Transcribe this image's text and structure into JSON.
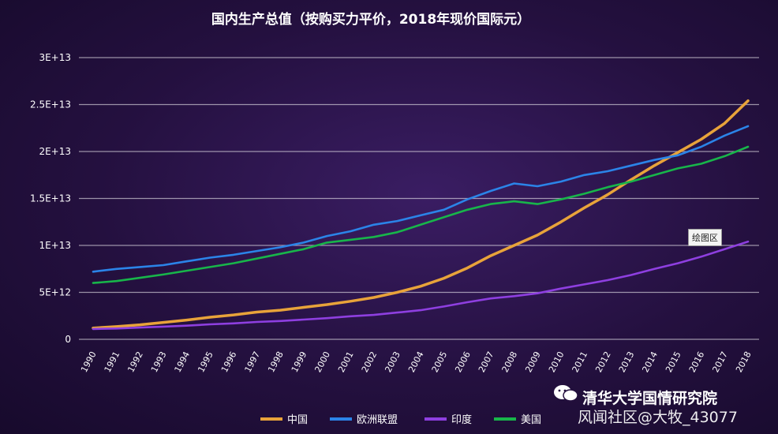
{
  "chart_data": {
    "type": "line",
    "title": "国内生产总值（按购买力平价，2018年现价国际元）",
    "xlabel": "",
    "ylabel": "",
    "ylim": [
      0,
      30000000000000
    ],
    "y_ticks": [
      0,
      5000000000000.0,
      10000000000000.0,
      15000000000000.0,
      20000000000000.0,
      25000000000000.0,
      30000000000000.0
    ],
    "y_tick_labels": [
      "0",
      "5E+12",
      "1E+13",
      "1.5E+13",
      "2E+13",
      "2.5E+13",
      "3E+13"
    ],
    "x": [
      "1990",
      "1991",
      "1992",
      "1993",
      "1994",
      "1995",
      "1996",
      "1997",
      "1998",
      "1999",
      "2000",
      "2001",
      "2002",
      "2003",
      "2004",
      "2005",
      "2006",
      "2007",
      "2008",
      "2009",
      "2010",
      "2011",
      "2012",
      "2013",
      "2014",
      "2015",
      "2016",
      "2017",
      "2018"
    ],
    "grid": true,
    "legend_position": "bottom",
    "series": [
      {
        "name": "中国",
        "color": "#e8a33a",
        "values": [
          1200000000000.0,
          1350000000000.0,
          1550000000000.0,
          1800000000000.0,
          2050000000000.0,
          2350000000000.0,
          2600000000000.0,
          2900000000000.0,
          3100000000000.0,
          3400000000000.0,
          3700000000000.0,
          4050000000000.0,
          4450000000000.0,
          5000000000000.0,
          5650000000000.0,
          6500000000000.0,
          7600000000000.0,
          8900000000000.0,
          10000000000000.0,
          11100000000000.0,
          12500000000000.0,
          14000000000000.0,
          15400000000000.0,
          17000000000000.0,
          18500000000000.0,
          19900000000000.0,
          21300000000000.0,
          23000000000000.0,
          25400000000000.0
        ]
      },
      {
        "name": "欧洲联盟",
        "color": "#2b84e8",
        "values": [
          7200000000000.0,
          7500000000000.0,
          7700000000000.0,
          7900000000000.0,
          8300000000000.0,
          8700000000000.0,
          9000000000000.0,
          9400000000000.0,
          9800000000000.0,
          10300000000000.0,
          11000000000000.0,
          11500000000000.0,
          12200000000000.0,
          12600000000000.0,
          13200000000000.0,
          13800000000000.0,
          14900000000000.0,
          15800000000000.0,
          16600000000000.0,
          16300000000000.0,
          16800000000000.0,
          17500000000000.0,
          17900000000000.0,
          18500000000000.0,
          19100000000000.0,
          19600000000000.0,
          20500000000000.0,
          21700000000000.0,
          22700000000000.0
        ]
      },
      {
        "name": "印度",
        "color": "#8e3fe0",
        "values": [
          1100000000000.0,
          1150000000000.0,
          1250000000000.0,
          1350000000000.0,
          1450000000000.0,
          1600000000000.0,
          1700000000000.0,
          1850000000000.0,
          1950000000000.0,
          2100000000000.0,
          2250000000000.0,
          2450000000000.0,
          2600000000000.0,
          2850000000000.0,
          3100000000000.0,
          3500000000000.0,
          3950000000000.0,
          4350000000000.0,
          4600000000000.0,
          4900000000000.0,
          5400000000000.0,
          5850000000000.0,
          6300000000000.0,
          6850000000000.0,
          7500000000000.0,
          8100000000000.0,
          8800000000000.0,
          9600000000000.0,
          10400000000000.0
        ]
      },
      {
        "name": "美国",
        "color": "#18b54a",
        "values": [
          6000000000000.0,
          6200000000000.0,
          6550000000000.0,
          6900000000000.0,
          7300000000000.0,
          7700000000000.0,
          8100000000000.0,
          8600000000000.0,
          9100000000000.0,
          9600000000000.0,
          10300000000000.0,
          10600000000000.0,
          10900000000000.0,
          11400000000000.0,
          12200000000000.0,
          13000000000000.0,
          13800000000000.0,
          14400000000000.0,
          14700000000000.0,
          14400000000000.0,
          14900000000000.0,
          15500000000000.0,
          16200000000000.0,
          16800000000000.0,
          17500000000000.0,
          18200000000000.0,
          18700000000000.0,
          19500000000000.0,
          20500000000000.0
        ]
      }
    ],
    "annotation": "绘图区"
  },
  "branding": {
    "org": "清华大学国情研究院",
    "watermark": "风闻社区@大牧_43077"
  }
}
